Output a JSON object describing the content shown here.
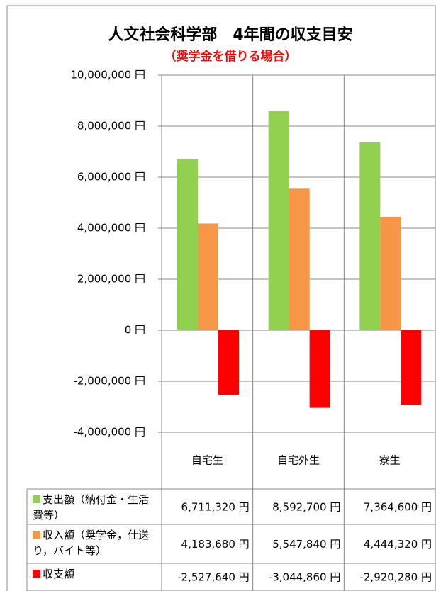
{
  "chart_data": {
    "type": "bar",
    "title": "人文社会科学部　4年間の収支目安",
    "subtitle": "（奨学金を借りる場合）",
    "categories": [
      "自宅生",
      "自宅外生",
      "寮生"
    ],
    "series": [
      {
        "name": "支出額（納付金・生活費等）",
        "color": "#92d050",
        "values": [
          6711320,
          8592700,
          7364600
        ],
        "value_labels": [
          "6,711,320 円",
          "8,592,700 円",
          "7,364,600 円"
        ]
      },
      {
        "name": "収入額（奨学金，仕送り，バイト等）",
        "color": "#f79646",
        "values": [
          4183680,
          5547840,
          4444320
        ],
        "value_labels": [
          "4,183,680 円",
          "5,547,840 円",
          "4,444,320 円"
        ]
      },
      {
        "name": "収支額",
        "color": "#ff0000",
        "values": [
          -2527640,
          -3044860,
          -2920280
        ],
        "value_labels": [
          "-2,527,640 円",
          "-3,044,860 円",
          "-2,920,280 円"
        ]
      }
    ],
    "ylim": [
      -4000000,
      10000000
    ],
    "yticks": [
      {
        "value": -4000000,
        "label": "-4,000,000 円"
      },
      {
        "value": -2000000,
        "label": "-2,000,000 円"
      },
      {
        "value": 0,
        "label": "0 円"
      },
      {
        "value": 2000000,
        "label": "2,000,000 円"
      },
      {
        "value": 4000000,
        "label": "4,000,000 円"
      },
      {
        "value": 6000000,
        "label": "6,000,000 円"
      },
      {
        "value": 8000000,
        "label": "8,000,000 円"
      },
      {
        "value": 10000000,
        "label": "10,000,000 円"
      }
    ],
    "grid": true
  }
}
